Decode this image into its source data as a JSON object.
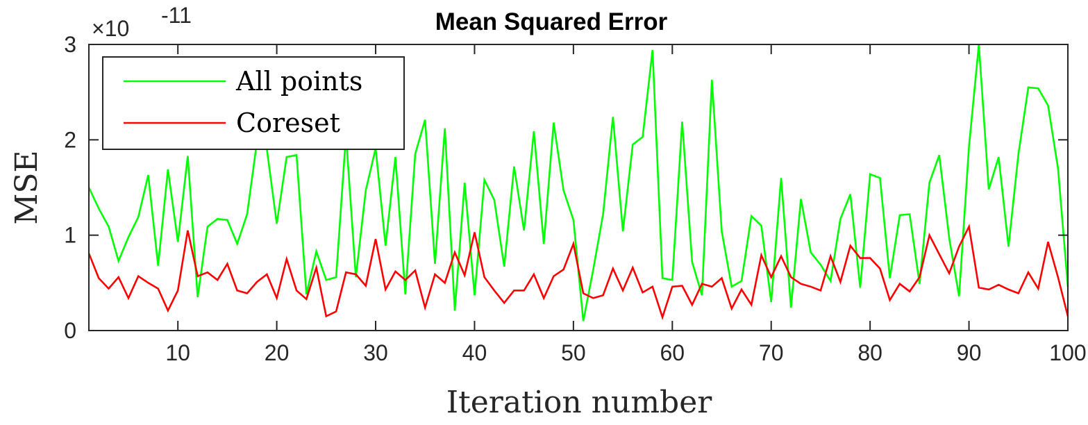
{
  "chart_data": {
    "type": "line",
    "title": "Mean Squared Error",
    "xlabel": "Iteration number",
    "ylabel": "MSE",
    "y_exponent": {
      "prefix": "×10",
      "power": "-11"
    },
    "xlim": [
      1,
      100
    ],
    "ylim": [
      0,
      3
    ],
    "x_ticks": [
      10,
      20,
      30,
      40,
      50,
      60,
      70,
      80,
      90,
      100
    ],
    "x_tick_labels": [
      "10",
      "20",
      "30",
      "40",
      "50",
      "60",
      "70",
      "80",
      "90",
      "100"
    ],
    "y_ticks": [
      0,
      1,
      2,
      3
    ],
    "y_tick_labels": [
      "0",
      "1",
      "2",
      "3"
    ],
    "grid": false,
    "legend_position": "top-left",
    "x": [
      1,
      2,
      3,
      4,
      5,
      6,
      7,
      8,
      9,
      10,
      11,
      12,
      13,
      14,
      15,
      16,
      17,
      18,
      19,
      20,
      21,
      22,
      23,
      24,
      25,
      26,
      27,
      28,
      29,
      30,
      31,
      32,
      33,
      34,
      35,
      36,
      37,
      38,
      39,
      40,
      41,
      42,
      43,
      44,
      45,
      46,
      47,
      48,
      49,
      50,
      51,
      52,
      53,
      54,
      55,
      56,
      57,
      58,
      59,
      60,
      61,
      62,
      63,
      64,
      65,
      66,
      67,
      68,
      69,
      70,
      71,
      72,
      73,
      74,
      75,
      76,
      77,
      78,
      79,
      80,
      81,
      82,
      83,
      84,
      85,
      86,
      87,
      88,
      89,
      90,
      91,
      92,
      93,
      94,
      95,
      96,
      97,
      98,
      99,
      100
    ],
    "series": [
      {
        "name": "All points",
        "color": "#00ff00",
        "values": [
          1.5,
          1.28,
          1.09,
          0.73,
          0.98,
          1.19,
          1.63,
          0.68,
          1.69,
          0.93,
          1.83,
          0.35,
          1.09,
          1.17,
          1.16,
          0.91,
          1.22,
          1.98,
          1.9,
          1.12,
          1.82,
          1.84,
          0.38,
          0.83,
          0.53,
          0.56,
          2.05,
          0.56,
          1.47,
          1.91,
          0.89,
          1.82,
          0.38,
          1.85,
          2.21,
          0.7,
          2.12,
          0.21,
          1.55,
          0.37,
          1.58,
          1.37,
          0.67,
          1.72,
          1.05,
          2.09,
          0.91,
          2.18,
          1.47,
          1.16,
          0.1,
          0.64,
          1.22,
          2.24,
          1.04,
          1.95,
          2.03,
          2.94,
          0.55,
          0.53,
          2.19,
          0.72,
          0.37,
          2.63,
          1.04,
          0.46,
          0.52,
          1.2,
          1.1,
          0.3,
          1.6,
          0.24,
          1.38,
          0.82,
          0.69,
          0.52,
          1.17,
          1.43,
          0.45,
          1.64,
          1.6,
          0.55,
          1.21,
          1.22,
          0.49,
          1.55,
          1.84,
          0.97,
          0.36,
          1.93,
          3.0,
          1.48,
          1.82,
          0.88,
          1.85,
          2.55,
          2.54,
          2.36,
          1.7,
          0.46
        ]
      },
      {
        "name": "Coreset",
        "color": "#ff0000",
        "values": [
          0.81,
          0.55,
          0.44,
          0.56,
          0.34,
          0.57,
          0.5,
          0.44,
          0.21,
          0.42,
          1.05,
          0.57,
          0.61,
          0.53,
          0.7,
          0.42,
          0.39,
          0.51,
          0.59,
          0.34,
          0.75,
          0.42,
          0.33,
          0.66,
          0.15,
          0.2,
          0.61,
          0.59,
          0.47,
          0.96,
          0.43,
          0.62,
          0.53,
          0.63,
          0.24,
          0.59,
          0.5,
          0.82,
          0.58,
          1.03,
          0.56,
          0.42,
          0.29,
          0.42,
          0.42,
          0.59,
          0.34,
          0.57,
          0.64,
          0.91,
          0.39,
          0.34,
          0.37,
          0.65,
          0.42,
          0.66,
          0.4,
          0.46,
          0.14,
          0.46,
          0.47,
          0.27,
          0.49,
          0.46,
          0.55,
          0.23,
          0.43,
          0.27,
          0.79,
          0.56,
          0.78,
          0.56,
          0.49,
          0.46,
          0.42,
          0.78,
          0.51,
          0.89,
          0.76,
          0.76,
          0.65,
          0.32,
          0.49,
          0.41,
          0.56,
          1.0,
          0.8,
          0.6,
          0.88,
          1.09,
          0.45,
          0.43,
          0.48,
          0.43,
          0.39,
          0.61,
          0.44,
          0.93,
          0.56,
          0.15
        ]
      }
    ]
  }
}
